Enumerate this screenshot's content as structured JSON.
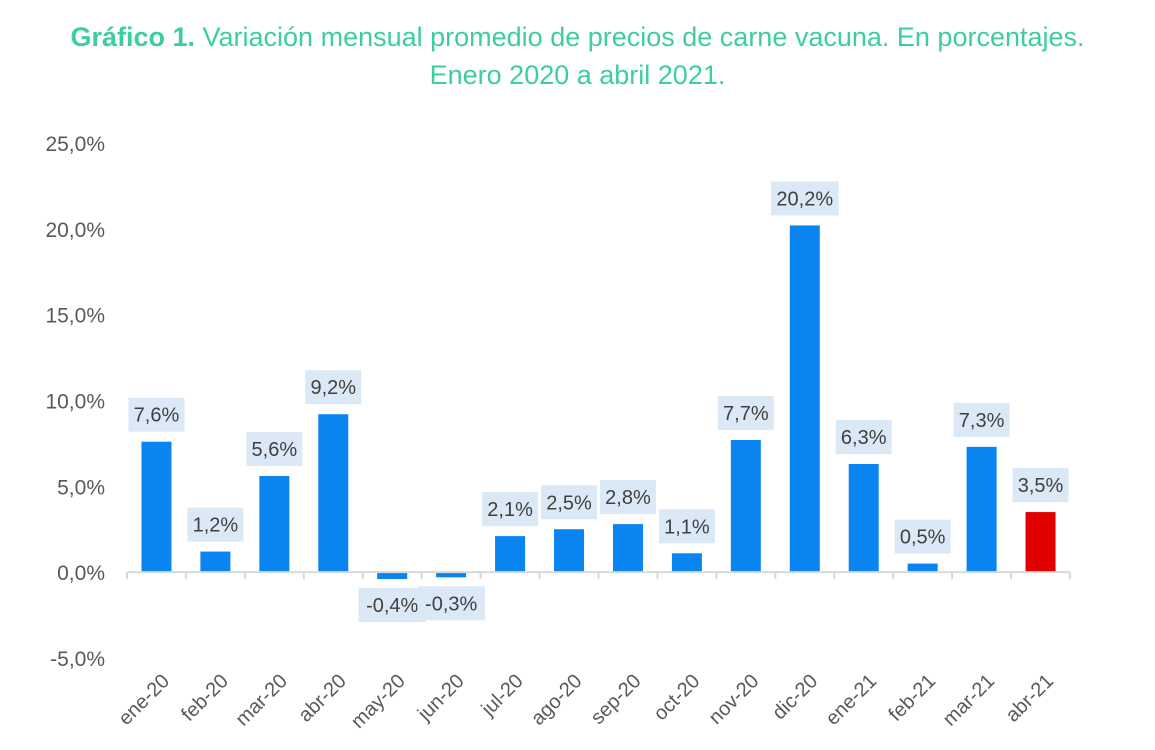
{
  "title": {
    "lead": "Gráfico 1.",
    "line1": "Variación mensual promedio de precios de carne vacuna. En porcentajes.",
    "line2": "Enero 2020 a abril 2021."
  },
  "colors": {
    "title": "#3dcf9a",
    "bar": "#0a84f0",
    "highlight_bar": "#e00000",
    "label_background": "#dbe9f7",
    "axis_text": "#595959",
    "axis_line": "#d9d9d9"
  },
  "chart_data": {
    "type": "bar",
    "title": "Gráfico 1. Variación mensual promedio de precios de carne vacuna. En porcentajes. Enero 2020 a abril 2021.",
    "categories": [
      "ene-20",
      "feb-20",
      "mar-20",
      "abr-20",
      "may-20",
      "jun-20",
      "jul-20",
      "ago-20",
      "sep-20",
      "oct-20",
      "nov-20",
      "dic-20",
      "ene-21",
      "feb-21",
      "mar-21",
      "abr-21"
    ],
    "values": [
      7.6,
      1.2,
      5.6,
      9.2,
      -0.4,
      -0.3,
      2.1,
      2.5,
      2.8,
      1.1,
      7.7,
      20.2,
      6.3,
      0.5,
      7.3,
      3.5
    ],
    "data_labels": [
      "7,6%",
      "1,2%",
      "5,6%",
      "9,2%",
      "-0,4%",
      "-0,3%",
      "2,1%",
      "2,5%",
      "2,8%",
      "1,1%",
      "7,7%",
      "20,2%",
      "6,3%",
      "0,5%",
      "7,3%",
      "3,5%"
    ],
    "highlight_index": 15,
    "ylim": [
      -5,
      25
    ],
    "yticks": [
      25,
      20,
      15,
      10,
      5,
      0,
      -5
    ],
    "ytick_labels": [
      "25,0%",
      "20,0%",
      "15,0%",
      "10,0%",
      "5,0%",
      "0,0%",
      "-5,0%"
    ],
    "xlabel": "",
    "ylabel": "",
    "grid": false,
    "legend": "none"
  }
}
